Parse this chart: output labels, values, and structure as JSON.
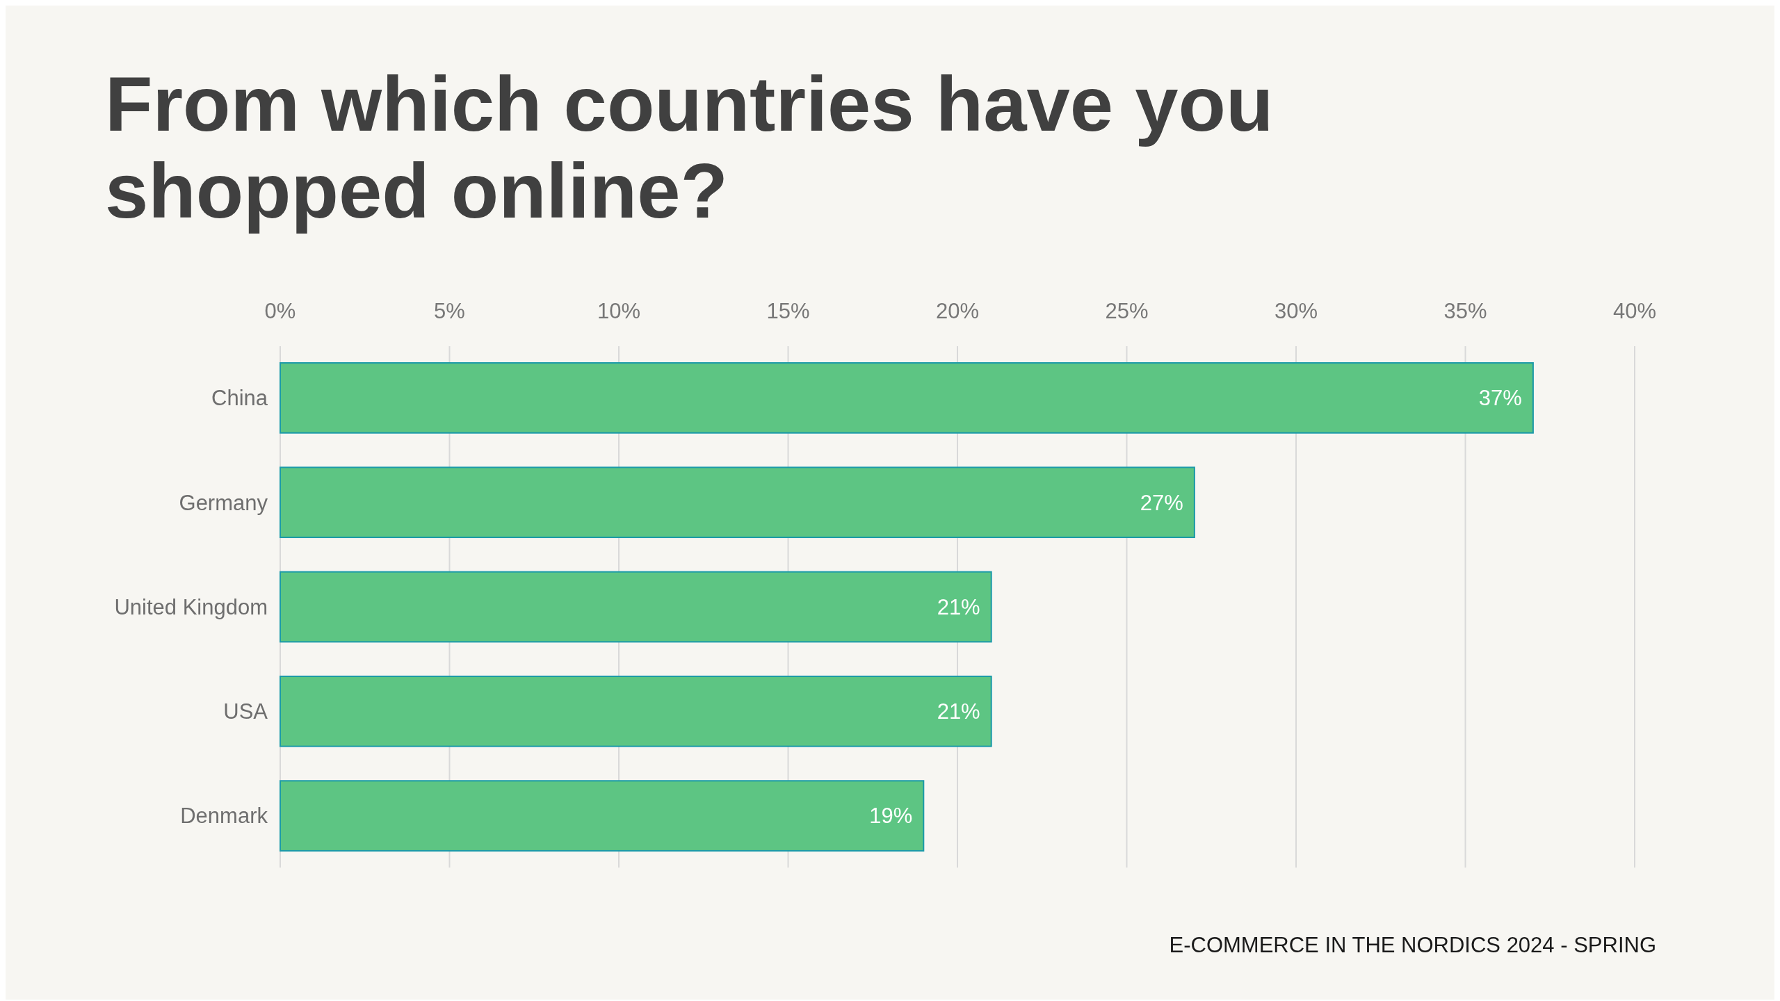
{
  "chart_data": {
    "type": "bar",
    "orientation": "horizontal",
    "title": "From which countries have you shopped online?",
    "categories": [
      "China",
      "Germany",
      "United Kingdom",
      "USA",
      "Denmark"
    ],
    "values": [
      37,
      27,
      21,
      21,
      19
    ],
    "value_labels": [
      "37%",
      "27%",
      "21%",
      "21%",
      "19%"
    ],
    "color": "#5dc583",
    "xlim": [
      0,
      40
    ],
    "xticks": [
      {
        "value": 0,
        "label": "0%"
      },
      {
        "value": 5,
        "label": "5%"
      },
      {
        "value": 10,
        "label": "10%"
      },
      {
        "value": 15,
        "label": "15%"
      },
      {
        "value": 20,
        "label": "20%"
      },
      {
        "value": 25,
        "label": "25%"
      },
      {
        "value": 30,
        "label": "30%"
      },
      {
        "value": 35,
        "label": "35%"
      },
      {
        "value": 40,
        "label": "40%"
      }
    ],
    "grid": "x",
    "annotations": [
      "E-COMMERCE IN THE NORDICS 2024 - SPRING"
    ]
  }
}
